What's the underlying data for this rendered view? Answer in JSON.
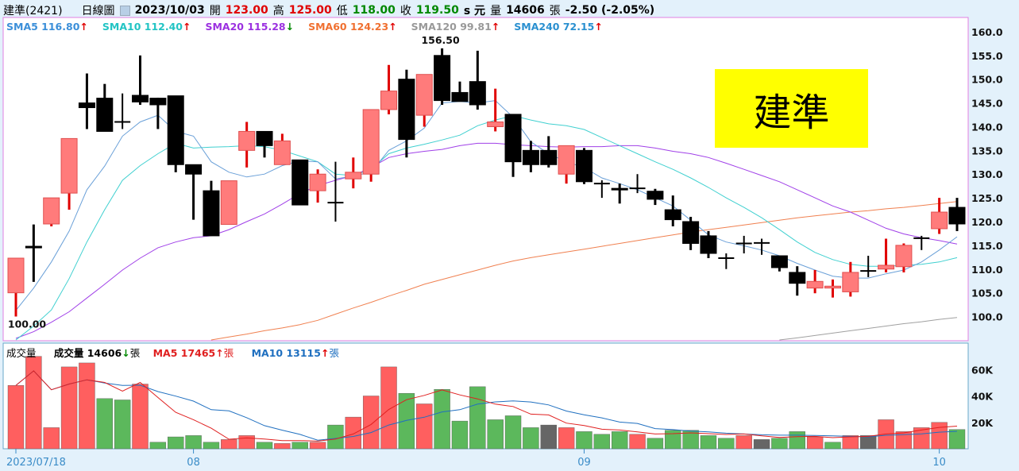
{
  "header": {
    "stock": "建準(2421)",
    "period": "日線圖",
    "date": "2023/10/03",
    "open_label": "開",
    "open": "123.00",
    "high_label": "高",
    "high": "125.00",
    "low_label": "低",
    "low": "118.00",
    "close_label": "收",
    "close": "119.50",
    "unit": "s 元",
    "volume_label": "量",
    "volume": "14606",
    "volume_unit": "張",
    "change": "-2.50 (-2.05%)"
  },
  "price_legend": [
    {
      "label": "SMA5 116.80",
      "arrow": "↑",
      "color": "#3b8fd9"
    },
    {
      "label": "SMA10 112.40",
      "arrow": "↑",
      "color": "#22c4c4"
    },
    {
      "label": "SMA20 115.28",
      "arrow": "↓",
      "color": "#9b30e0"
    },
    {
      "label": "SMA60 124.23",
      "arrow": "↑",
      "color": "#f07030"
    },
    {
      "label": "SMA120 99.81",
      "arrow": "↑",
      "color": "#999999"
    },
    {
      "label": "SMA240 72.15",
      "arrow": "↑",
      "color": "#2a90d0"
    }
  ],
  "volume_legend": {
    "title": "成交量",
    "vol": "成交量 14606",
    "vol_arrow": "↓",
    "vol_unit": "張",
    "ma5": "MA5 17465",
    "ma5_arrow": "↑",
    "ma5_unit": "張",
    "ma10": "MA10 13115",
    "ma10_arrow": "↑",
    "ma10_unit": "張"
  },
  "brand_box": "建準",
  "colors": {
    "up": "#ff7b7b",
    "up_wick": "#e00000",
    "down": "#000000",
    "vol_up": "#ff5f5f",
    "vol_down": "#5cb85c",
    "vol_flat": "#666666",
    "ma5": "#6aa0d8",
    "ma10": "#40d0d0",
    "ma20": "#a040e8",
    "ma60": "#f08050",
    "ma120": "#a0a0a0",
    "vma5": "#e02020",
    "vma10": "#2070c0"
  },
  "chart_data": {
    "type": "candlestick",
    "price_axis": {
      "ticks": [
        "160.0",
        "155.0",
        "150.0",
        "145.0",
        "140.0",
        "135.0",
        "130.0",
        "125.0",
        "120.0",
        "115.0",
        "110.0",
        "105.0",
        "100.0"
      ],
      "ylim": [
        94.9,
        163.0
      ]
    },
    "volume_axis": {
      "ticks": [
        "60K",
        "40K",
        "20K"
      ],
      "ylim": [
        0,
        80
      ]
    },
    "x_labels": [
      {
        "index": 0,
        "label": "2023/07/18"
      },
      {
        "index": 10,
        "label": "08"
      },
      {
        "index": 32,
        "label": "09"
      },
      {
        "index": 52,
        "label": "10"
      }
    ],
    "annotations": {
      "max_label": "156.50",
      "max_index": 24,
      "max_value": 156.5,
      "min_label": "100.00",
      "min_index": 0,
      "min_value": 100
    },
    "ohlc": [
      [
        105,
        112.3,
        100,
        112.3
      ],
      [
        114.8,
        119.4,
        107.3,
        114.5
      ],
      [
        119.5,
        125,
        119,
        125
      ],
      [
        126,
        137.5,
        122.5,
        137.5
      ],
      [
        145,
        151.2,
        139.5,
        144
      ],
      [
        146,
        149,
        139,
        139
      ],
      [
        141,
        147,
        139.5,
        141
      ],
      [
        146.6,
        155,
        144.6,
        145.2
      ],
      [
        146,
        146.1,
        139.5,
        144.6
      ],
      [
        146.5,
        146.5,
        130.4,
        132
      ],
      [
        132,
        132,
        120.4,
        130
      ],
      [
        126.5,
        128.6,
        117,
        117
      ],
      [
        119.4,
        128.6,
        119.4,
        128.6
      ],
      [
        135,
        141,
        131.4,
        139
      ],
      [
        139,
        139,
        133.5,
        136
      ],
      [
        132,
        138.5,
        132,
        137
      ],
      [
        133,
        133,
        123.5,
        123.5
      ],
      [
        126.5,
        131,
        124,
        130
      ],
      [
        124,
        132.6,
        120,
        124
      ],
      [
        129,
        133.5,
        127,
        130.4
      ],
      [
        130,
        143.6,
        128.4,
        143.6
      ],
      [
        143.6,
        153,
        142.6,
        147.5
      ],
      [
        150,
        152,
        133.5,
        137.3
      ],
      [
        142.4,
        151,
        140,
        151
      ],
      [
        155,
        156.5,
        144.6,
        145.5
      ],
      [
        147.2,
        149.5,
        145.3,
        145.3
      ],
      [
        149.5,
        156,
        143.6,
        144.6
      ],
      [
        140,
        148,
        139,
        141
      ],
      [
        142.6,
        142.6,
        129.4,
        132.6
      ],
      [
        135,
        137,
        130.4,
        132
      ],
      [
        135,
        138,
        131.4,
        132
      ],
      [
        130,
        136,
        128,
        136
      ],
      [
        135,
        135.5,
        127.9,
        128.4
      ],
      [
        128,
        128.7,
        125,
        128
      ],
      [
        127,
        128,
        123.8,
        126.7
      ],
      [
        127,
        130,
        126,
        127
      ],
      [
        126.4,
        126.9,
        123.5,
        124.7
      ],
      [
        122.5,
        125.5,
        119,
        120.4
      ],
      [
        120,
        121,
        114,
        115.4
      ],
      [
        117,
        118,
        112.3,
        113.3
      ],
      [
        112.3,
        113.3,
        110,
        112.3
      ],
      [
        115.4,
        117,
        113.3,
        115.4
      ],
      [
        115.5,
        116.4,
        113,
        115.5
      ],
      [
        112.8,
        112.8,
        109.5,
        110.3
      ],
      [
        109.3,
        110.6,
        104.4,
        107
      ],
      [
        106,
        109.8,
        104.9,
        107.4
      ],
      [
        106,
        107.8,
        104,
        106.4
      ],
      [
        105.2,
        111.5,
        104.2,
        109.3
      ],
      [
        109.6,
        112.8,
        108.3,
        109.6
      ],
      [
        110,
        116.4,
        109.3,
        110.8
      ],
      [
        110.5,
        115.4,
        109.3,
        115
      ],
      [
        116.5,
        117,
        114,
        116.5
      ],
      [
        118.5,
        125,
        117.4,
        122
      ],
      [
        123,
        125,
        118,
        119.5
      ]
    ],
    "sma5": [
      101.3,
      106,
      111.5,
      118,
      126.7,
      131.7,
      138,
      141,
      142.4,
      139,
      138,
      132.6,
      130.4,
      129.4,
      130,
      131.8,
      132.8,
      132.6,
      129,
      129.6,
      130.4,
      135,
      137,
      139.7,
      145,
      145.3,
      145,
      145.5,
      142,
      136.8,
      134.3,
      132.6,
      131.4,
      129.2,
      128,
      126.7,
      125,
      123.3,
      120.3,
      117.2,
      115.7,
      114.9,
      114,
      112.8,
      111.2,
      109.8,
      108.5,
      108.1,
      108.1,
      109,
      109.8,
      111.5,
      114,
      116.8
    ],
    "sma10": [
      95,
      98,
      101.4,
      108,
      115.7,
      122.5,
      128.7,
      131.8,
      134.3,
      136.5,
      135.5,
      135.7,
      135.8,
      136,
      135.8,
      135,
      133.8,
      132.6,
      130,
      129.7,
      131,
      134.3,
      135.5,
      136.3,
      137.2,
      138.2,
      140.2,
      141.4,
      142.3,
      141.4,
      140.6,
      140.2,
      139.4,
      137.7,
      136,
      134.3,
      132.6,
      131,
      129.2,
      127.2,
      125,
      123,
      120.8,
      118.3,
      115.7,
      113.5,
      112,
      111,
      110.6,
      110.6,
      110.8,
      111,
      111.5,
      112.4
    ],
    "sma20": [
      95.4,
      96.8,
      98.8,
      101,
      103.9,
      106.8,
      109.8,
      112.3,
      114.5,
      115.7,
      116.6,
      117,
      118.3,
      120,
      121.6,
      123.7,
      125.9,
      127.6,
      128.7,
      129.7,
      131.4,
      133.5,
      134.3,
      134.8,
      135.2,
      136,
      136.5,
      136.5,
      136.2,
      136,
      135.8,
      135.7,
      135.8,
      135.8,
      136,
      136,
      135.5,
      134.8,
      134.3,
      133.5,
      132.3,
      131,
      129.7,
      128.4,
      126.7,
      125,
      123.3,
      122,
      120.3,
      118.6,
      117.4,
      116.6,
      116,
      115.28
    ],
    "sma60": [
      null,
      null,
      null,
      null,
      null,
      null,
      null,
      null,
      null,
      null,
      null,
      95,
      95.7,
      96.3,
      97,
      97.6,
      98.3,
      99.2,
      100.5,
      101.8,
      103,
      104.3,
      105.5,
      106.8,
      107.8,
      108.8,
      109.8,
      110.8,
      111.7,
      112.4,
      113,
      113.6,
      114.2,
      114.8,
      115.4,
      116,
      116.6,
      117.2,
      117.8,
      118.3,
      118.8,
      119.3,
      119.8,
      120.3,
      120.8,
      121.2,
      121.6,
      122,
      122.3,
      122.7,
      123,
      123.4,
      123.8,
      124.23
    ],
    "sma120": [
      null,
      null,
      null,
      null,
      null,
      null,
      null,
      null,
      null,
      null,
      null,
      null,
      null,
      null,
      null,
      null,
      null,
      null,
      null,
      null,
      null,
      null,
      null,
      null,
      null,
      null,
      null,
      null,
      null,
      null,
      null,
      null,
      null,
      null,
      null,
      null,
      null,
      null,
      null,
      null,
      null,
      null,
      null,
      95,
      95.5,
      96,
      96.5,
      97,
      97.5,
      98,
      98.5,
      98.9,
      99.4,
      99.81
    ],
    "volume": [
      48,
      70,
      16,
      62,
      65,
      38,
      37,
      49,
      5,
      9,
      10,
      5,
      7,
      10,
      5,
      4,
      5,
      5,
      18,
      24,
      40,
      62,
      42,
      34,
      45,
      21,
      47,
      22,
      25,
      16,
      18,
      16,
      13,
      11,
      13,
      11,
      8,
      14,
      14,
      10,
      8,
      10,
      7,
      8,
      13,
      9,
      5,
      10,
      10,
      22,
      13,
      16,
      20,
      14.6
    ],
    "volume_dir": [
      "u",
      "u",
      "u",
      "u",
      "u",
      "d",
      "d",
      "u",
      "d",
      "d",
      "d",
      "d",
      "u",
      "u",
      "d",
      "u",
      "d",
      "u",
      "d",
      "u",
      "u",
      "u",
      "d",
      "u",
      "d",
      "d",
      "d",
      "d",
      "d",
      "d",
      "f",
      "u",
      "d",
      "d",
      "d",
      "u",
      "d",
      "d",
      "d",
      "d",
      "d",
      "u",
      "f",
      "d",
      "d",
      "u",
      "d",
      "u",
      "f",
      "u",
      "u",
      "u",
      "u",
      "d"
    ]
  }
}
